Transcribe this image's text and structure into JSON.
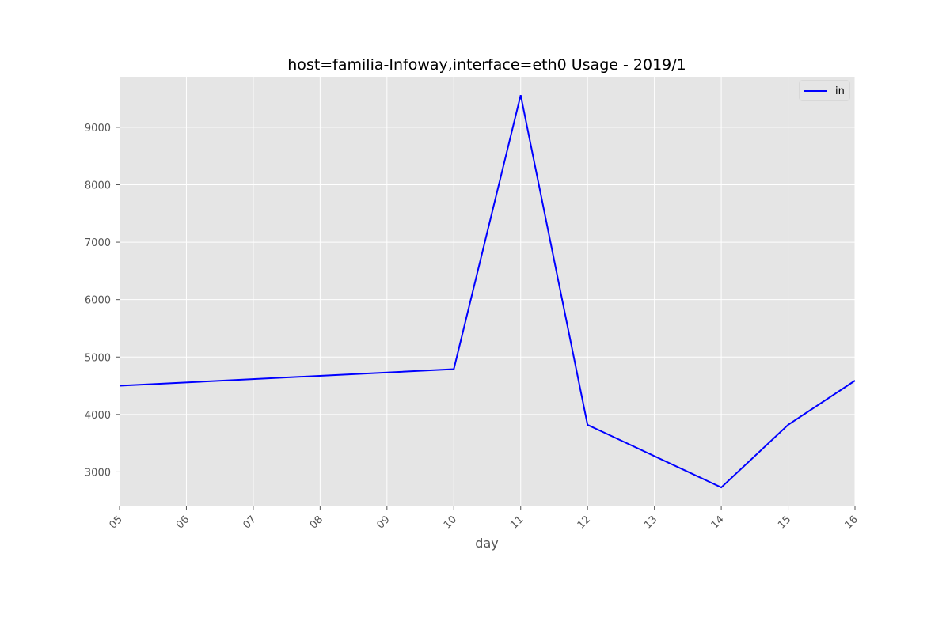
{
  "chart_data": {
    "type": "line",
    "title": "host=familia-Infoway,interface=eth0 Usage - 2019/1",
    "xlabel": "day",
    "ylabel": "",
    "categories": [
      "05",
      "06",
      "07",
      "08",
      "09",
      "10",
      "11",
      "12",
      "13",
      "14",
      "15",
      "16"
    ],
    "x": [
      5,
      10,
      11,
      12,
      14,
      15,
      16
    ],
    "series": [
      {
        "name": "in",
        "color": "#0000ff",
        "x": [
          5,
          10,
          11,
          12,
          14,
          15,
          16
        ],
        "values": [
          4500,
          4790,
          9560,
          3820,
          2730,
          3820,
          4590
        ]
      }
    ],
    "xlim": [
      5,
      16
    ],
    "ylim": [
      2400,
      9880
    ],
    "yticks": [
      3000,
      4000,
      5000,
      6000,
      7000,
      8000,
      9000
    ],
    "grid": true,
    "legend": "top-right",
    "colors": {
      "plot_background": "#e5e5e5",
      "grid": "#ffffff",
      "tick_label": "#555555"
    }
  }
}
